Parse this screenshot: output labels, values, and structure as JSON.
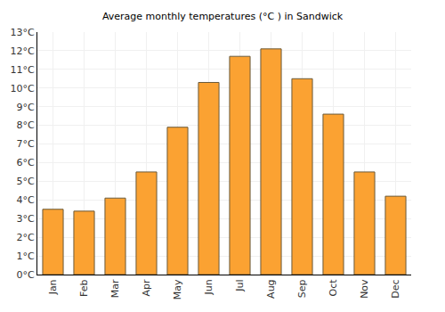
{
  "chart_data": {
    "type": "bar",
    "title": "Average monthly temperatures (°C ) in Sandwick",
    "categories": [
      "Jan",
      "Feb",
      "Mar",
      "Apr",
      "May",
      "Jun",
      "Jul",
      "Aug",
      "Sep",
      "Oct",
      "Nov",
      "Dec"
    ],
    "values": [
      3.5,
      3.4,
      4.1,
      5.5,
      7.9,
      10.3,
      11.7,
      12.1,
      10.5,
      8.6,
      5.5,
      4.2
    ],
    "color": "#fba232",
    "ylim": [
      0,
      13
    ],
    "yticks": [
      {
        "value": 0,
        "label": "0°C"
      },
      {
        "value": 1,
        "label": "1°C"
      },
      {
        "value": 2,
        "label": "2°C"
      },
      {
        "value": 3,
        "label": "3°C"
      },
      {
        "value": 4,
        "label": "4°C"
      },
      {
        "value": 5,
        "label": "5°C"
      },
      {
        "value": 6,
        "label": "6°C"
      },
      {
        "value": 7,
        "label": "7°C"
      },
      {
        "value": 8,
        "label": "8°C"
      },
      {
        "value": 9,
        "label": "9°C"
      },
      {
        "value": 10,
        "label": "10°C"
      },
      {
        "value": 11,
        "label": "11°C"
      },
      {
        "value": 12,
        "label": "12°C"
      },
      {
        "value": 13,
        "label": "13°C"
      }
    ],
    "grid": true
  }
}
